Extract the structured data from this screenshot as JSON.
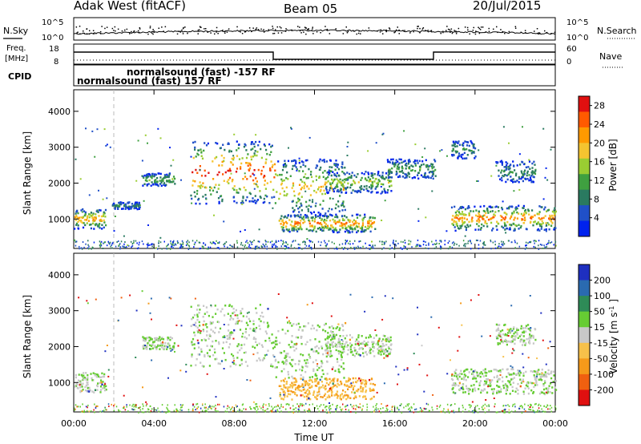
{
  "header": {
    "title": "Adak West (fitACF)",
    "beam": "Beam 05",
    "date": "20/Jul/2015"
  },
  "labels": {
    "nsky": "N.Sky",
    "nsearch": "N.Search",
    "freq_line1": "Freq.",
    "freq_line2": "[MHz]",
    "nave": "Nave",
    "cpid": "CPID",
    "cpid_line1": "normalsound (fast) -157 RF",
    "cpid_line2": "normalsound (fast) 157 RF",
    "xlabel": "Time UT"
  },
  "noise_axis": {
    "left_ticks": [
      "10^5",
      "10^0"
    ],
    "right_ticks": [
      "10^5",
      "10^0"
    ]
  },
  "freq_axis": {
    "left_ticks": [
      "18",
      "8"
    ],
    "right_ticks": [
      "60",
      "0"
    ]
  },
  "chart_data": [
    {
      "type": "heatmap",
      "title": "",
      "xlabel": "Time UT",
      "ylabel": "Slant Range [km]",
      "x_ticks": [
        "00:00",
        "04:00",
        "08:00",
        "12:00",
        "16:00",
        "20:00",
        "00:00"
      ],
      "xlim_hours": [
        0,
        24
      ],
      "y_ticks": [
        1000,
        2000,
        3000,
        4000
      ],
      "ylim": [
        180,
        4600
      ],
      "colorbar": {
        "label": "Power [dB]",
        "ticks": [
          4,
          8,
          12,
          16,
          20,
          24,
          28
        ],
        "range": [
          0,
          30
        ],
        "colors": [
          "#0022ee",
          "#2050c8",
          "#2a7a60",
          "#3fa040",
          "#9acd32",
          "#f4c430",
          "#ff9a00",
          "#ff5a00",
          "#e01010"
        ]
      },
      "echo_regions": [
        {
          "t0": 0.0,
          "t1": 1.6,
          "r0": 750,
          "r1": 1300,
          "peak": 22
        },
        {
          "t0": 1.9,
          "t1": 3.3,
          "r0": 1300,
          "r1": 1500,
          "peak": 10
        },
        {
          "t0": 3.4,
          "t1": 5.0,
          "r0": 1950,
          "r1": 2300,
          "peak": 13
        },
        {
          "t0": 5.8,
          "t1": 10.0,
          "r0": 1450,
          "r1": 3200,
          "peak": 28
        },
        {
          "t0": 10.0,
          "t1": 13.5,
          "r0": 1100,
          "r1": 2700,
          "peak": 20
        },
        {
          "t0": 10.2,
          "t1": 15.0,
          "r0": 650,
          "r1": 1150,
          "peak": 24
        },
        {
          "t0": 12.5,
          "t1": 15.8,
          "r0": 1750,
          "r1": 2350,
          "peak": 16
        },
        {
          "t0": 15.6,
          "t1": 18.0,
          "r0": 2150,
          "r1": 2700,
          "peak": 12
        },
        {
          "t0": 18.8,
          "t1": 24.0,
          "r0": 700,
          "r1": 1400,
          "peak": 24
        },
        {
          "t0": 18.8,
          "t1": 20.0,
          "r0": 2700,
          "r1": 3200,
          "peak": 10
        },
        {
          "t0": 21.0,
          "t1": 23.0,
          "r0": 2050,
          "r1": 2650,
          "peak": 10
        }
      ]
    },
    {
      "type": "heatmap",
      "title": "",
      "xlabel": "Time UT",
      "ylabel": "Slant Range [km]",
      "x_ticks": [
        "00:00",
        "04:00",
        "08:00",
        "12:00",
        "16:00",
        "20:00",
        "00:00"
      ],
      "xlim_hours": [
        0,
        24
      ],
      "y_ticks": [
        1000,
        2000,
        3000,
        4000
      ],
      "ylim": [
        180,
        4600
      ],
      "colorbar": {
        "label": "Velocity [m s^-1]",
        "ticks": [
          "200",
          "100",
          "50",
          "15",
          "-15",
          "-50",
          "-100",
          "-200"
        ],
        "range": [
          -250,
          250
        ],
        "colors": [
          "#1e2fc0",
          "#2a6ab0",
          "#2e8b57",
          "#66cc33",
          "#c8c8c8",
          "#f7c14a",
          "#f59a1a",
          "#f06010",
          "#e01010"
        ]
      },
      "echo_regions": [
        {
          "t0": 0.0,
          "t1": 1.6,
          "r0": 750,
          "r1": 1300,
          "v": 0
        },
        {
          "t0": 3.4,
          "t1": 5.0,
          "r0": 1950,
          "r1": 2300,
          "v": 0
        },
        {
          "t0": 5.8,
          "t1": 10.0,
          "r0": 1450,
          "r1": 3200,
          "v": 0
        },
        {
          "t0": 10.0,
          "t1": 13.5,
          "r0": 1100,
          "r1": 2700,
          "v": 0
        },
        {
          "t0": 10.2,
          "t1": 15.0,
          "r0": 550,
          "r1": 1150,
          "v": -45
        },
        {
          "t0": 12.5,
          "t1": 15.8,
          "r0": 1750,
          "r1": 2350,
          "v": 0
        },
        {
          "t0": 18.8,
          "t1": 24.0,
          "r0": 700,
          "r1": 1400,
          "v": 0
        },
        {
          "t0": 21.0,
          "t1": 23.0,
          "r0": 2050,
          "r1": 2650,
          "v": 0
        }
      ]
    }
  ]
}
